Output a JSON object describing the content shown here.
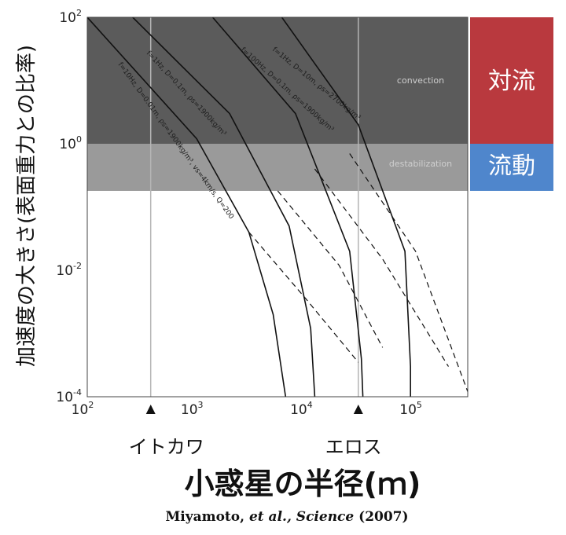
{
  "chart_data": {
    "type": "line",
    "x_scale": "log",
    "y_scale": "log",
    "xlim": [
      100,
      300000
    ],
    "ylim": [
      0.0001,
      100
    ],
    "x_ticks": [
      100,
      1000,
      10000,
      100000
    ],
    "y_ticks": [
      0.0001,
      0.01,
      1,
      100
    ],
    "x_tick_base": "10",
    "x_tick_exponents": [
      "2",
      "3",
      "4",
      "5"
    ],
    "y_tick_base": "10",
    "y_tick_exponents": [
      "-4",
      "-2",
      "0",
      "2"
    ],
    "ylabel": "加速度の大きさ(表面重力との比率)",
    "xlabel": "小惑星の半径(ｍ)",
    "regions": [
      {
        "label": "convection",
        "y_from": 1,
        "y_to": 100,
        "color": "#5b5b5b"
      },
      {
        "label": "destabilization",
        "y_from": 0.18,
        "y_to": 1,
        "color": "#9a9a9a"
      }
    ],
    "side_bands": [
      {
        "label": "対流",
        "color": "#b9393e"
      },
      {
        "label": "流動",
        "color": "#4f86cc"
      }
    ],
    "asteroids": [
      {
        "name": "イトカワ",
        "radius": 380
      },
      {
        "name": "エロス",
        "radius": 30000
      }
    ],
    "series": [
      {
        "name": "f=10Hz, D=0.01m, ρs=1900kg/m³, vs=4km/s, Q=200",
        "solid": [
          [
            100,
            100
          ],
          [
            1000,
            1.2
          ],
          [
            3000,
            0.04
          ],
          [
            5000,
            0.002
          ],
          [
            6500,
            0.0001
          ]
        ],
        "dashed": [
          [
            3000,
            0.04
          ],
          [
            10000,
            0.0035
          ],
          [
            30000,
            0.00035
          ]
        ]
      },
      {
        "name": "f=1Hz, D=0.1m, ρs=1900kg/m³",
        "solid": [
          [
            260,
            100
          ],
          [
            2000,
            3
          ],
          [
            7000,
            0.05
          ],
          [
            11000,
            0.0012
          ],
          [
            12000,
            0.0001
          ]
        ],
        "dashed": [
          [
            5500,
            0.18
          ],
          [
            20000,
            0.012
          ],
          [
            50000,
            0.0006
          ]
        ]
      },
      {
        "name": "f=100Hz, D=0.1m, ρs=1900kg/m³",
        "solid": [
          [
            1400,
            100
          ],
          [
            8000,
            3
          ],
          [
            25000,
            0.02
          ],
          [
            32000,
            0.0004
          ],
          [
            33000,
            0.0001
          ]
        ],
        "dashed": [
          [
            12000,
            0.4
          ],
          [
            50000,
            0.015
          ],
          [
            200000,
            0.0003
          ]
        ]
      },
      {
        "name": "f=1Hz, D=10m, ρs=2700kg/m³",
        "solid": [
          [
            6000,
            100
          ],
          [
            30000,
            2
          ],
          [
            80000,
            0.02
          ],
          [
            90000,
            0.0003
          ],
          [
            90000,
            0.0001
          ]
        ],
        "dashed": [
          [
            25000,
            0.7
          ],
          [
            100000,
            0.02
          ],
          [
            300000,
            0.00012
          ]
        ]
      }
    ],
    "grid": false
  },
  "citation": {
    "authors": "Miyamoto, ",
    "etal": "et al.,",
    "journal": "Science",
    "year": "(2007)"
  },
  "colors": {
    "convection_band": "#5b5b5b",
    "flow_band": "#9a9a9a",
    "side_convection": "#b9393e",
    "side_flow": "#4f86cc"
  }
}
